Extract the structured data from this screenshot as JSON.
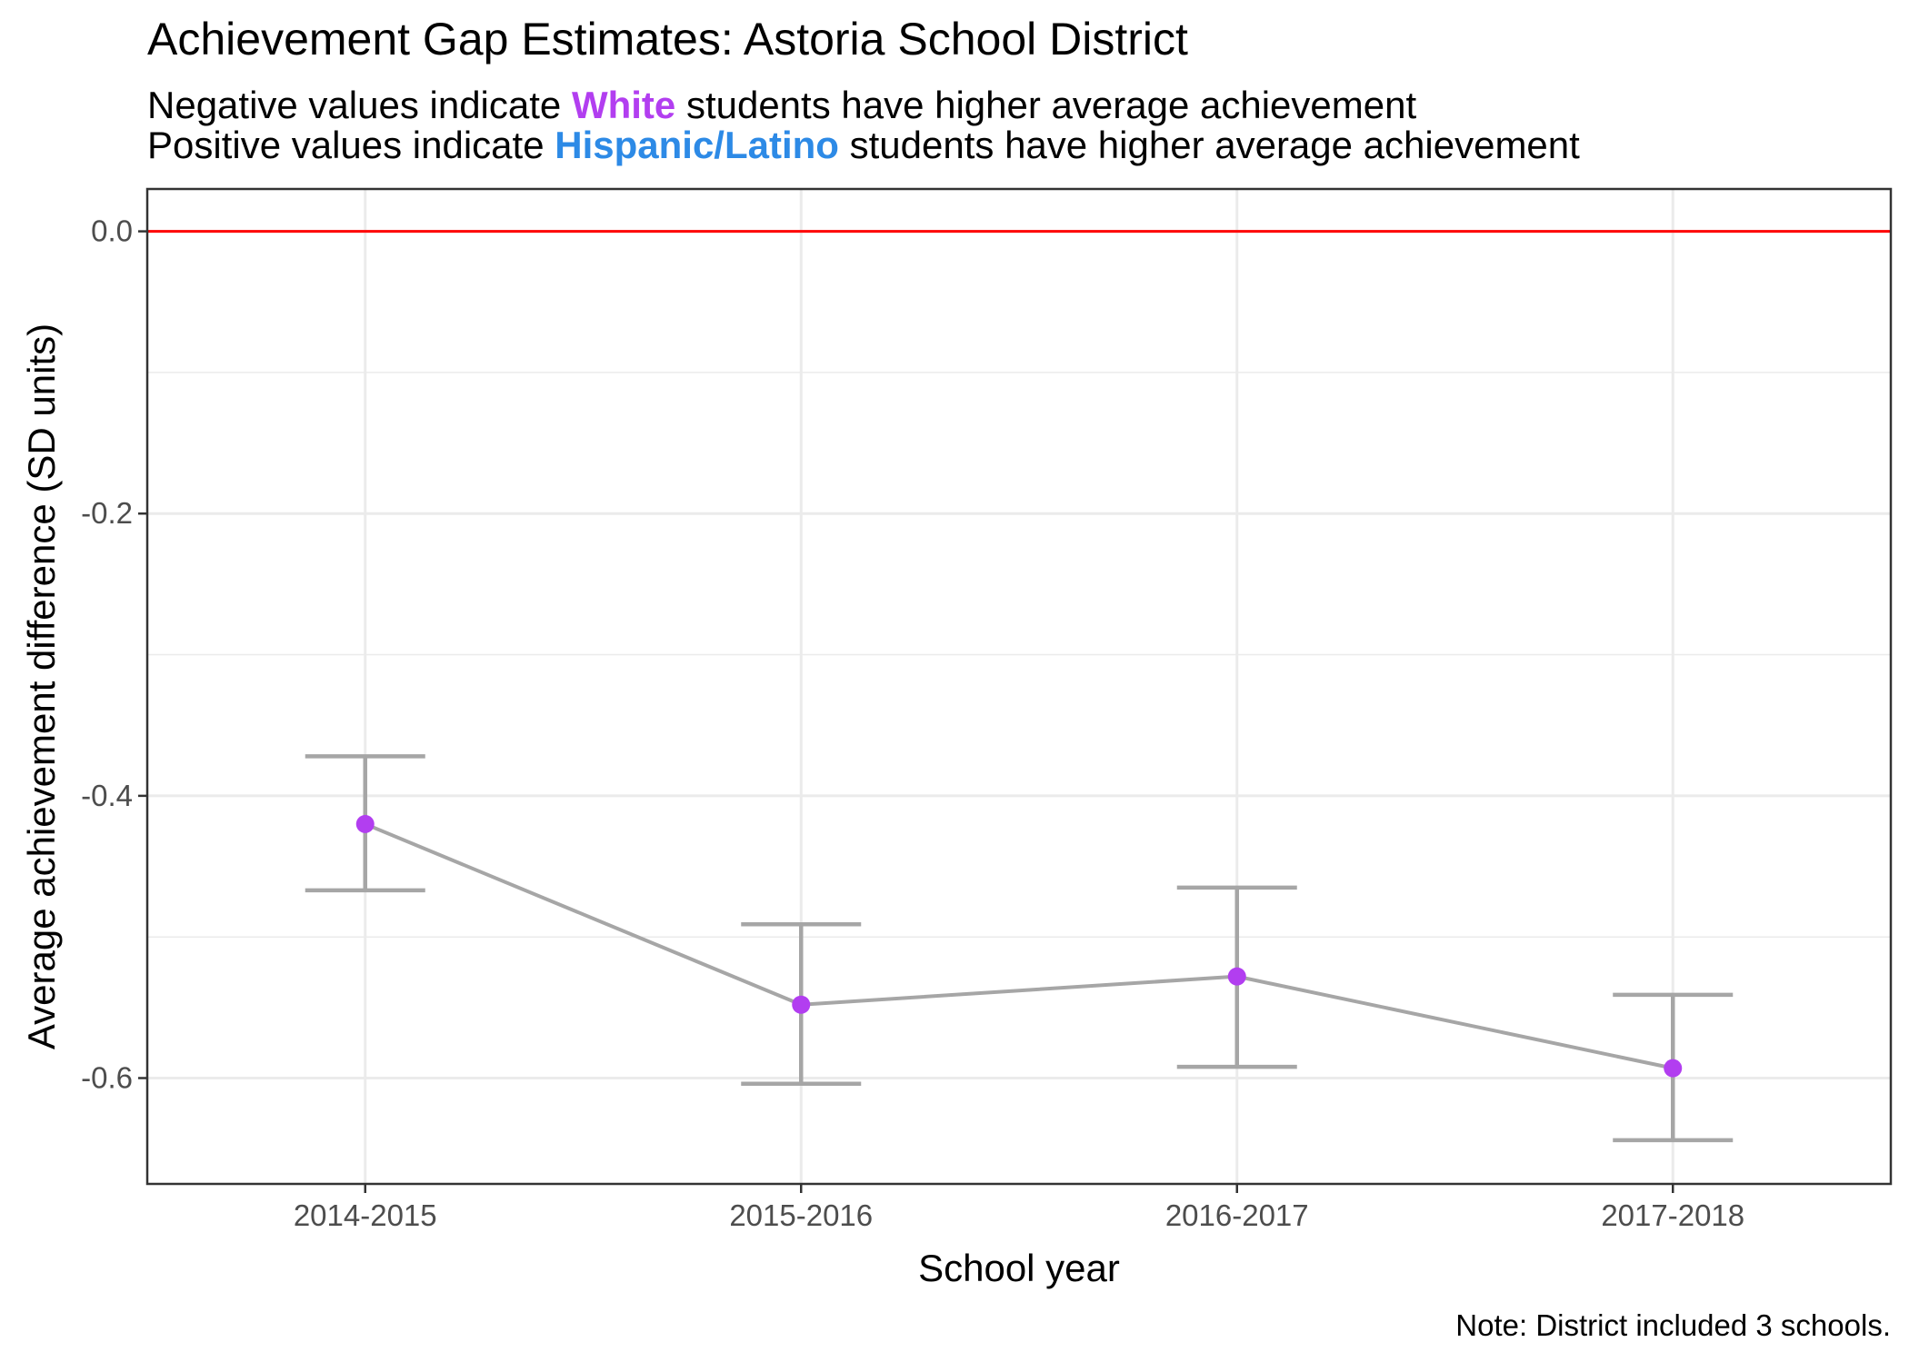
{
  "title": "Achievement Gap Estimates: Astoria School District",
  "subtitle": {
    "line1_before": "Negative values indicate",
    "line1_highlight": "White",
    "line1_after": "students have higher average achievement",
    "line2_before": "Positive values indicate",
    "line2_highlight": "Hispanic/Latino",
    "line2_after": "students have higher average achievement"
  },
  "note": "Note: District included 3 schools.",
  "colors": {
    "white_group": "#b23ef0",
    "hispanic_group": "#2d8ae6",
    "reference_line": "#ff0000",
    "series_line": "#a6a6a6",
    "point": "#b23ef0",
    "grid": "#ebebeb"
  },
  "chart_data": {
    "type": "line",
    "categories": [
      "2014-2015",
      "2015-2016",
      "2016-2017",
      "2017-2018"
    ],
    "values": [
      -0.42,
      -0.548,
      -0.528,
      -0.593
    ],
    "error_bars": {
      "lower": [
        -0.467,
        -0.604,
        -0.592,
        -0.644
      ],
      "upper": [
        -0.372,
        -0.491,
        -0.465,
        -0.541
      ]
    },
    "reference_line": 0.0,
    "xlabel": "School year",
    "ylabel": "Average achievement difference (SD units)",
    "ylim": [
      -0.675,
      0.03
    ],
    "yticks": [
      "0.0",
      "-0.2",
      "-0.4",
      "-0.6"
    ],
    "grid": true
  }
}
